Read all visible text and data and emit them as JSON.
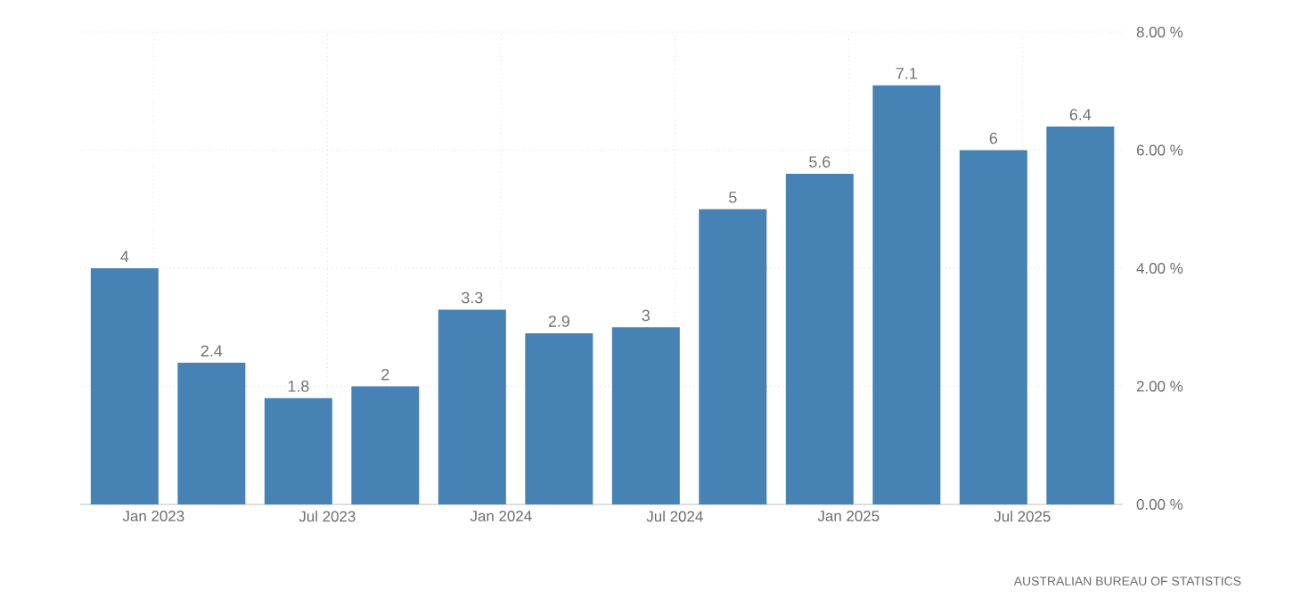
{
  "chart_data": {
    "type": "bar",
    "x": [
      "2022-12",
      "2023-03",
      "2023-06",
      "2023-09",
      "2023-12",
      "2024-03",
      "2024-06",
      "2024-09",
      "2024-12",
      "2025-03",
      "2025-06",
      "2025-09"
    ],
    "values": [
      4,
      2.4,
      1.8,
      2,
      3.3,
      2.9,
      3,
      5,
      5.6,
      7.1,
      6,
      6.4
    ],
    "color": "#4682b4",
    "xlim": [
      "2022-10-15",
      "2025-10-15"
    ],
    "xticks": [
      {
        "value": "2023-01",
        "label": "Jan 2023"
      },
      {
        "value": "2023-07",
        "label": "Jul 2023"
      },
      {
        "value": "2024-01",
        "label": "Jan 2024"
      },
      {
        "value": "2024-07",
        "label": "Jul 2024"
      },
      {
        "value": "2025-01",
        "label": "Jan 2025"
      },
      {
        "value": "2025-07",
        "label": "Jul 2025"
      }
    ],
    "ylim": [
      0,
      8
    ],
    "yticks": [
      {
        "value": 0,
        "label": "0.00 %"
      },
      {
        "value": 2,
        "label": "2.00 %"
      },
      {
        "value": 4,
        "label": "4.00 %"
      },
      {
        "value": 6,
        "label": "6.00 %"
      },
      {
        "value": 8,
        "label": "8.00 %"
      }
    ],
    "grid": true,
    "data_labels": true,
    "annotations": [
      "AUSTRALIAN BUREAU OF STATISTICS"
    ]
  }
}
